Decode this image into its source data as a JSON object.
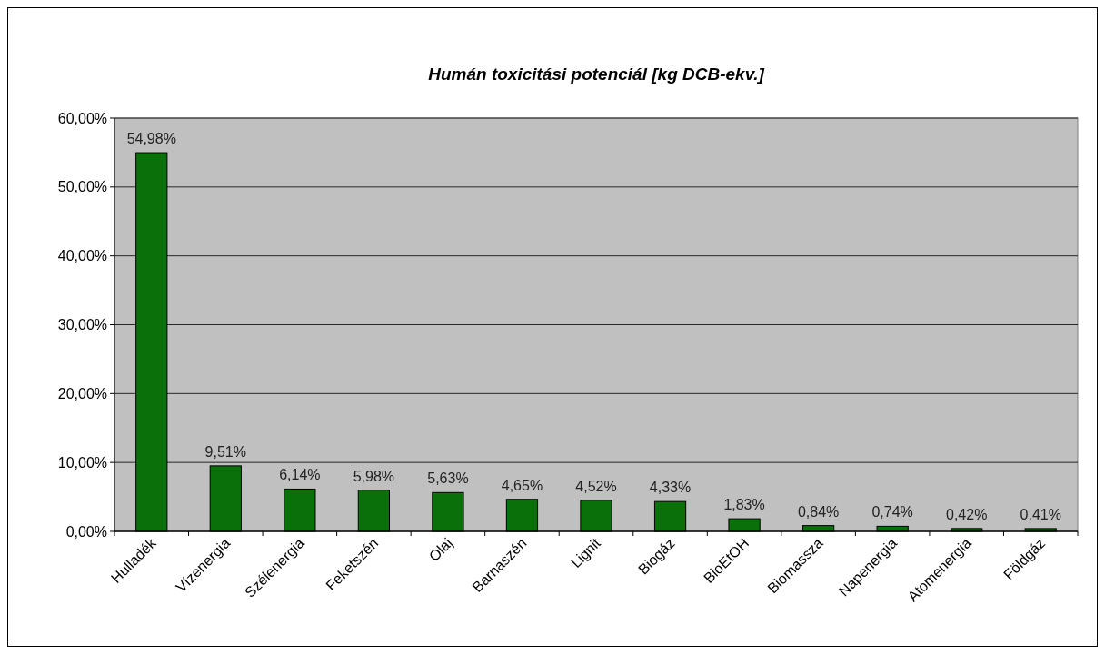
{
  "chart_data": {
    "type": "bar",
    "title": "Humán toxicitási potenciál [kg DCB-ekv.]",
    "categories": [
      "Hulladék",
      "Vízenergia",
      "Szélenergia",
      "Feketszén",
      "Olaj",
      "Barnaszén",
      "Lignit",
      "Biogáz",
      "BioEtOH",
      "Biomassza",
      "Napenergia",
      "Atomenergia",
      "Földgáz"
    ],
    "values": [
      54.98,
      9.51,
      6.14,
      5.98,
      5.63,
      4.65,
      4.52,
      4.33,
      1.83,
      0.84,
      0.74,
      0.42,
      0.41
    ],
    "value_labels": [
      "54,98%",
      "9,51%",
      "6,14%",
      "5,98%",
      "5,63%",
      "4,65%",
      "4,52%",
      "4,33%",
      "1,83%",
      "0,84%",
      "0,74%",
      "0,42%",
      "0,41%"
    ],
    "color": "#0a700a",
    "ylim": [
      0,
      60
    ],
    "yticks": [
      {
        "value": 0,
        "label": "0,00%"
      },
      {
        "value": 10,
        "label": "10,00%"
      },
      {
        "value": 20,
        "label": "20,00%"
      },
      {
        "value": 30,
        "label": "30,00%"
      },
      {
        "value": 40,
        "label": "40,00%"
      },
      {
        "value": 50,
        "label": "50,00%"
      },
      {
        "value": 60,
        "label": "60,00%"
      }
    ],
    "grid": "y"
  }
}
